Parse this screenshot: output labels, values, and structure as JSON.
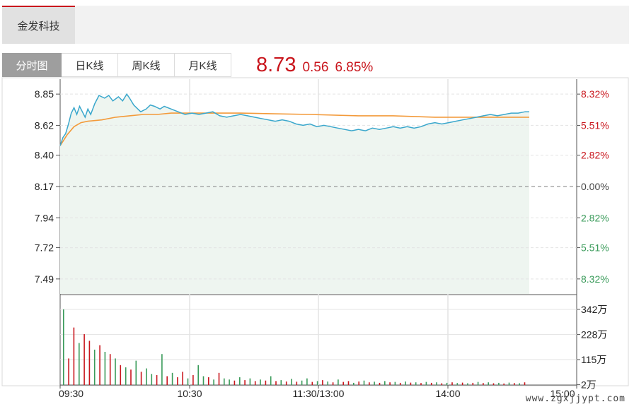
{
  "stock_tab": {
    "label": "金发科技"
  },
  "period_tabs": [
    {
      "label": "分时图",
      "active": true
    },
    {
      "label": "日K线",
      "active": false
    },
    {
      "label": "周K线",
      "active": false
    },
    {
      "label": "月K线",
      "active": false
    }
  ],
  "quote": {
    "price": "8.73",
    "change": "0.56",
    "change_pct": "6.85%"
  },
  "colors": {
    "up": "#c9161d",
    "down": "#3a9b5a",
    "price_line": "#3aa7cc",
    "avg_line": "#f39a3a",
    "area_fill": "#eef5f0",
    "grid": "#e3e3e3"
  },
  "chart_data": {
    "type": "line",
    "price_axis": {
      "ticks": [
        8.85,
        8.62,
        8.4,
        8.17,
        7.94,
        7.72,
        7.49
      ],
      "tick_labels": [
        "8.85",
        "8.62",
        "8.40",
        "8.17",
        "7.94",
        "7.72",
        "7.49"
      ],
      "range": [
        7.38,
        8.96
      ],
      "prev_close": 8.17
    },
    "pct_axis": {
      "labels": [
        "8.32%",
        "5.51%",
        "2.82%",
        "0.00%",
        "2.82%",
        "5.51%",
        "8.32%"
      ],
      "directions": [
        "up",
        "up",
        "up",
        "flat",
        "down",
        "down",
        "down"
      ]
    },
    "volume_axis": {
      "tick_labels": [
        "342万",
        "228万",
        "115万",
        "2万"
      ],
      "tick_values": [
        342,
        228,
        115,
        2
      ],
      "range": [
        0,
        380
      ],
      "unit": "万"
    },
    "time_labels": [
      "09:30",
      "10:30",
      "11:30/13:00",
      "14:00",
      "15:00"
    ],
    "price_series": {
      "points": [
        [
          0,
          8.47
        ],
        [
          2,
          8.53
        ],
        [
          4,
          8.56
        ],
        [
          6,
          8.63
        ],
        [
          8,
          8.71
        ],
        [
          10,
          8.75
        ],
        [
          12,
          8.7
        ],
        [
          14,
          8.76
        ],
        [
          16,
          8.72
        ],
        [
          18,
          8.68
        ],
        [
          20,
          8.74
        ],
        [
          22,
          8.7
        ],
        [
          25,
          8.78
        ],
        [
          28,
          8.84
        ],
        [
          32,
          8.82
        ],
        [
          35,
          8.84
        ],
        [
          38,
          8.8
        ],
        [
          42,
          8.83
        ],
        [
          45,
          8.8
        ],
        [
          48,
          8.85
        ],
        [
          50,
          8.82
        ],
        [
          53,
          8.77
        ],
        [
          56,
          8.74
        ],
        [
          58,
          8.72
        ],
        [
          62,
          8.74
        ],
        [
          65,
          8.77
        ],
        [
          68,
          8.76
        ],
        [
          72,
          8.74
        ],
        [
          75,
          8.76
        ],
        [
          80,
          8.74
        ],
        [
          85,
          8.72
        ],
        [
          90,
          8.7
        ],
        [
          95,
          8.71
        ],
        [
          100,
          8.7
        ],
        [
          105,
          8.71
        ],
        [
          110,
          8.72
        ],
        [
          115,
          8.69
        ],
        [
          120,
          8.68
        ],
        [
          125,
          8.69
        ],
        [
          130,
          8.7
        ],
        [
          135,
          8.69
        ],
        [
          140,
          8.68
        ],
        [
          145,
          8.67
        ],
        [
          150,
          8.66
        ],
        [
          155,
          8.65
        ],
        [
          160,
          8.66
        ],
        [
          165,
          8.65
        ],
        [
          170,
          8.63
        ],
        [
          175,
          8.62
        ],
        [
          180,
          8.63
        ],
        [
          185,
          8.61
        ],
        [
          190,
          8.62
        ],
        [
          195,
          8.61
        ],
        [
          200,
          8.6
        ],
        [
          205,
          8.59
        ],
        [
          210,
          8.58
        ],
        [
          215,
          8.59
        ],
        [
          220,
          8.58
        ],
        [
          225,
          8.6
        ],
        [
          230,
          8.59
        ],
        [
          235,
          8.6
        ],
        [
          240,
          8.61
        ],
        [
          245,
          8.6
        ],
        [
          250,
          8.61
        ],
        [
          255,
          8.6
        ],
        [
          260,
          8.61
        ],
        [
          265,
          8.63
        ],
        [
          270,
          8.64
        ],
        [
          275,
          8.63
        ],
        [
          280,
          8.64
        ],
        [
          285,
          8.65
        ],
        [
          290,
          8.66
        ],
        [
          295,
          8.67
        ],
        [
          300,
          8.68
        ],
        [
          305,
          8.69
        ],
        [
          310,
          8.7
        ],
        [
          315,
          8.69
        ],
        [
          320,
          8.7
        ],
        [
          325,
          8.71
        ],
        [
          330,
          8.71
        ],
        [
          335,
          8.72
        ],
        [
          338,
          8.72
        ]
      ]
    },
    "avg_series": {
      "points": [
        [
          0,
          8.47
        ],
        [
          5,
          8.55
        ],
        [
          10,
          8.61
        ],
        [
          15,
          8.64
        ],
        [
          20,
          8.65
        ],
        [
          30,
          8.66
        ],
        [
          40,
          8.68
        ],
        [
          50,
          8.69
        ],
        [
          60,
          8.7
        ],
        [
          70,
          8.7
        ],
        [
          80,
          8.71
        ],
        [
          100,
          8.71
        ],
        [
          130,
          8.71
        ],
        [
          180,
          8.7
        ],
        [
          215,
          8.69
        ],
        [
          240,
          8.69
        ],
        [
          270,
          8.68
        ],
        [
          300,
          8.68
        ],
        [
          330,
          8.68
        ],
        [
          338,
          8.68
        ]
      ]
    },
    "volume_series": {
      "values": [
        342,
        120,
        260,
        190,
        230,
        200,
        160,
        180,
        150,
        140,
        120,
        90,
        80,
        70,
        110,
        60,
        75,
        50,
        45,
        140,
        40,
        55,
        35,
        60,
        30,
        45,
        90,
        40,
        35,
        25,
        55,
        30,
        25,
        20,
        35,
        22,
        30,
        18,
        25,
        20,
        40,
        18,
        22,
        16,
        28,
        15,
        20,
        30,
        14,
        18,
        22,
        16,
        12,
        25,
        14,
        18,
        10,
        16,
        20,
        12,
        15,
        10,
        18,
        12,
        14,
        10,
        16,
        11,
        12,
        9,
        14,
        10,
        12,
        8,
        10,
        12,
        9,
        11,
        8,
        10,
        14,
        9,
        12,
        8,
        10,
        7,
        11,
        9,
        8,
        12
      ],
      "directions": [
        "down",
        "up",
        "up",
        "down",
        "up",
        "up",
        "down",
        "up",
        "down",
        "up",
        "down",
        "up",
        "down",
        "up",
        "down",
        "up",
        "down",
        "down",
        "up",
        "down",
        "up",
        "down",
        "up",
        "up",
        "down",
        "up",
        "down",
        "down",
        "up",
        "down",
        "up",
        "down",
        "down",
        "up",
        "down",
        "up",
        "down",
        "up",
        "down",
        "up",
        "down",
        "up",
        "down",
        "up",
        "down",
        "up",
        "down",
        "down",
        "up",
        "down",
        "up",
        "down",
        "up",
        "down",
        "up",
        "up",
        "down",
        "up",
        "down",
        "up",
        "down",
        "up",
        "down",
        "up",
        "down",
        "up",
        "down",
        "up",
        "down",
        "up",
        "down",
        "up",
        "down",
        "up",
        "down",
        "up",
        "down",
        "up",
        "down",
        "up",
        "down",
        "up",
        "down",
        "up",
        "down",
        "up",
        "down",
        "up",
        "down",
        "up"
      ]
    },
    "grid": true
  },
  "watermark": "www.zgxjjypt.com"
}
